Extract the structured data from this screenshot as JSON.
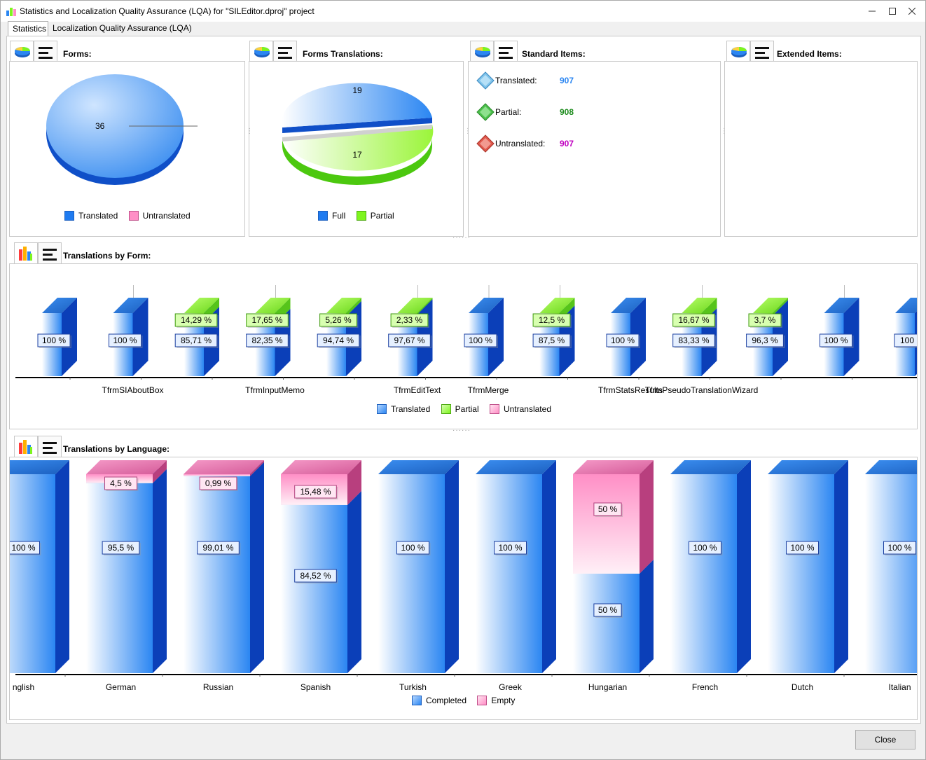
{
  "window": {
    "title": "Statistics and Localization Quality Assurance (LQA) for \"SILEditor.dproj\" project",
    "minimize_icon": "minimize-icon",
    "maximize_icon": "maximize-icon",
    "close_icon": "close-icon"
  },
  "tabs": [
    "Statistics",
    "Localization Quality Assurance (LQA)"
  ],
  "panels": {
    "forms": {
      "title": "Forms:",
      "legend": [
        "Translated",
        "Untranslated"
      ]
    },
    "forms_translations": {
      "title": "Forms Translations:",
      "legend": [
        "Full",
        "Partial"
      ]
    },
    "standard_items": {
      "title": "Standard Items:",
      "items": [
        {
          "label": "Translated:",
          "value": "907",
          "color": "#2b86f2"
        },
        {
          "label": "Partial:",
          "value": "908",
          "color": "#1e8c1e"
        },
        {
          "label": "Untranslated:",
          "value": "907",
          "color": "#c000c0"
        }
      ]
    },
    "extended_items": {
      "title": "Extended Items:"
    },
    "by_form": {
      "title": "Translations by Form:",
      "legend": [
        "Translated",
        "Partial",
        "Untranslated"
      ]
    },
    "by_language": {
      "title": "Translations by Language:",
      "legend": [
        "Completed",
        "Empty"
      ]
    }
  },
  "buttons": {
    "close": "Close"
  },
  "chart_data": [
    {
      "type": "pie",
      "title": "Forms:",
      "categories": [
        "Translated",
        "Untranslated"
      ],
      "values": [
        36,
        0
      ],
      "labels": [
        "36",
        ""
      ],
      "colors": [
        "#2b86f2",
        "#ff8fc6"
      ],
      "legend": "bottom"
    },
    {
      "type": "pie",
      "title": "Forms Translations:",
      "categories": [
        "Full",
        "Partial"
      ],
      "values": [
        19,
        17
      ],
      "labels": [
        "19",
        "17"
      ],
      "colors": [
        "#2b86f2",
        "#7ef51e"
      ],
      "legend": "bottom"
    },
    {
      "type": "bar",
      "title": "Translations by Form:",
      "stacked": true,
      "categories": [
        "",
        "TfrmSIAboutBox",
        "",
        "TfrmInputMemo",
        "",
        "TfrmEditText",
        "TfrmMerge",
        "",
        "TfrmStatsResults",
        "TfrmPseudoTranslationWizard",
        "",
        "",
        ""
      ],
      "series": [
        {
          "name": "Translated",
          "values": [
            100,
            100,
            85.71,
            82.35,
            94.74,
            97.67,
            100,
            87.5,
            100,
            83.33,
            96.3,
            100,
            100
          ]
        },
        {
          "name": "Partial",
          "values": [
            0,
            0,
            14.29,
            17.65,
            5.26,
            2.33,
            0,
            12.5,
            0,
            16.67,
            3.7,
            0,
            0
          ]
        },
        {
          "name": "Untranslated",
          "values": [
            0,
            0,
            0,
            0,
            0,
            0,
            0,
            0,
            0,
            0,
            0,
            0,
            0
          ]
        }
      ],
      "labels": {
        "Translated": [
          "100 %",
          "100 %",
          "85,71 %",
          "82,35 %",
          "94,74 %",
          "97,67 %",
          "100 %",
          "87,5 %",
          "100 %",
          "83,33 %",
          "96,3 %",
          "100 %",
          "100"
        ],
        "Partial": [
          "",
          "",
          "14,29 %",
          "17,65 %",
          "5,26 %",
          "2,33 %",
          "",
          "12,5 %",
          "",
          "16,67 %",
          "3,7 %",
          "",
          ""
        ]
      },
      "legend": "bottom"
    },
    {
      "type": "bar",
      "title": "Translations by Language:",
      "stacked": true,
      "categories": [
        "nglish",
        "German",
        "Russian",
        "Spanish",
        "Turkish",
        "Greek",
        "Hungarian",
        "French",
        "Dutch",
        "Italian"
      ],
      "series": [
        {
          "name": "Completed",
          "values": [
            100,
            95.5,
            99.01,
            84.52,
            100,
            100,
            50,
            100,
            100,
            100
          ]
        },
        {
          "name": "Empty",
          "values": [
            0,
            4.5,
            0.99,
            15.48,
            0,
            0,
            50,
            0,
            0,
            0
          ]
        }
      ],
      "labels": {
        "Completed": [
          "100 %",
          "95,5 %",
          "99,01 %",
          "84,52 %",
          "100 %",
          "100 %",
          "50 %",
          "100 %",
          "100 %",
          "100 %"
        ],
        "Empty": [
          "",
          "4,5 %",
          "0,99 %",
          "15,48 %",
          "",
          "",
          "50 %",
          "",
          "",
          ""
        ]
      },
      "legend": "bottom"
    }
  ]
}
